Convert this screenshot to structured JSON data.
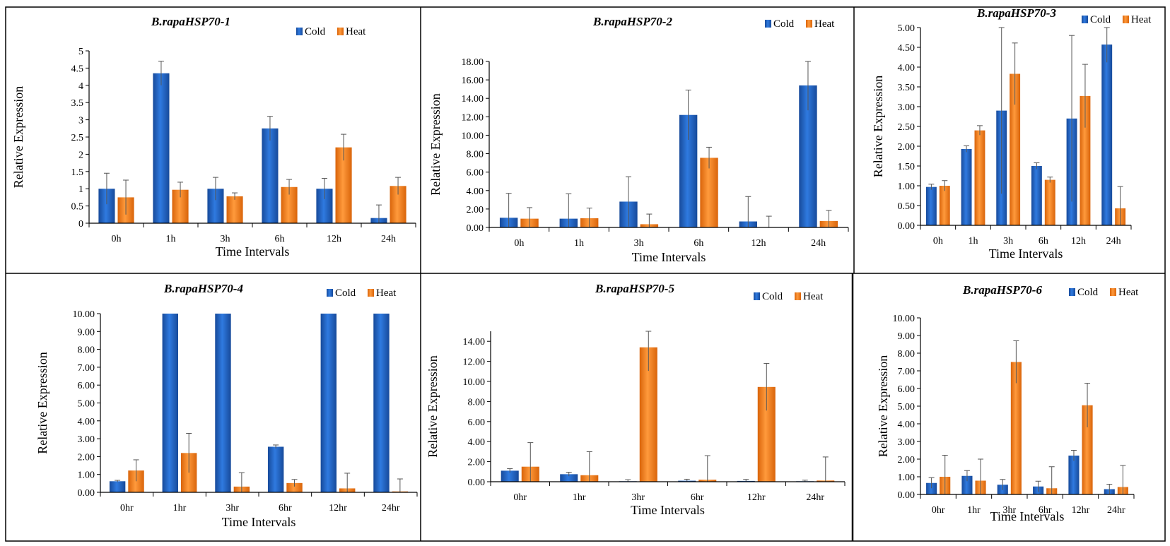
{
  "figure_colors": {
    "cold": "#1f5fbf",
    "heat": "#f07a14",
    "error_bar": "#555555",
    "axis": "#000000"
  },
  "chart_data": [
    {
      "type": "bar",
      "title": "B.rapaHSP70-1",
      "xlabel": "Time Intervals",
      "ylabel": "Relative Expression",
      "categories": [
        "0h",
        "1h",
        "3h",
        "6h",
        "12h",
        "24h"
      ],
      "ylim": [
        0,
        5
      ],
      "ytick_step": 0.5,
      "ytick_labels": [
        "0",
        "0.5",
        "1",
        "1.5",
        "2",
        "2.5",
        "3",
        "3.5",
        "4",
        "4.5",
        "5"
      ],
      "legend_position": "top-right",
      "series": [
        {
          "name": "Cold",
          "values": [
            1.0,
            4.35,
            1.0,
            2.75,
            1.0,
            0.15
          ],
          "errors": [
            0.45,
            0.35,
            0.33,
            0.35,
            0.3,
            0.38
          ]
        },
        {
          "name": "Heat",
          "values": [
            0.75,
            0.97,
            0.78,
            1.05,
            2.2,
            1.08
          ],
          "errors": [
            0.5,
            0.22,
            0.1,
            0.22,
            0.38,
            0.25
          ]
        }
      ]
    },
    {
      "type": "bar",
      "title": "B.rapaHSP70-2",
      "xlabel": "Time Intervals",
      "ylabel": "Relative Expression",
      "categories": [
        "0h",
        "1h",
        "3h",
        "6h",
        "12h",
        "24h"
      ],
      "ylim": [
        0,
        18
      ],
      "ytick_step": 2,
      "ytick_labels": [
        "0.00",
        "2.00",
        "4.00",
        "6.00",
        "8.00",
        "10.00",
        "12.00",
        "14.00",
        "16.00",
        "18.00"
      ],
      "legend_position": "top-right",
      "series": [
        {
          "name": "Cold",
          "values": [
            1.05,
            0.95,
            2.8,
            12.2,
            0.65,
            15.4
          ],
          "errors": [
            2.65,
            2.7,
            2.7,
            2.7,
            2.7,
            2.7
          ]
        },
        {
          "name": "Heat",
          "values": [
            0.95,
            1.0,
            0.35,
            7.55,
            0.02,
            0.7
          ],
          "errors": [
            1.2,
            1.1,
            1.1,
            1.15,
            1.2,
            1.15
          ]
        }
      ]
    },
    {
      "type": "bar",
      "title": "B.rapaHSP70-3",
      "xlabel": "Time Intervals",
      "ylabel": "Relative Expression",
      "categories": [
        "0h",
        "1h",
        "3h",
        "6h",
        "12h",
        "24h"
      ],
      "ylim": [
        0,
        5
      ],
      "ytick_step": 0.5,
      "ytick_labels": [
        "0.00",
        "0.50",
        "1.00",
        "1.50",
        "2.00",
        "2.50",
        "3.00",
        "3.50",
        "4.00",
        "4.50",
        "5.00"
      ],
      "legend_position": "top-right",
      "series": [
        {
          "name": "Cold",
          "values": [
            0.97,
            1.93,
            2.9,
            1.5,
            2.7,
            4.57
          ],
          "errors": [
            0.07,
            0.08,
            2.1,
            0.08,
            2.1,
            0.45
          ]
        },
        {
          "name": "Heat",
          "values": [
            1.0,
            2.4,
            3.83,
            1.15,
            3.27,
            0.43
          ],
          "errors": [
            0.13,
            0.12,
            0.78,
            0.07,
            0.8,
            0.55
          ]
        }
      ]
    },
    {
      "type": "bar",
      "title": "B.rapaHSP70-4",
      "xlabel": "Time Intervals",
      "ylabel": "Relative Expression",
      "categories": [
        "0hr",
        "1hr",
        "3hr",
        "6hr",
        "12hr",
        "24hr"
      ],
      "ylim": [
        0,
        10
      ],
      "ytick_step": 1,
      "ytick_labels": [
        "0.00",
        "1.00",
        "2.00",
        "3.00",
        "4.00",
        "5.00",
        "6.00",
        "7.00",
        "8.00",
        "9.00",
        "10.00"
      ],
      "legend_position": "top-right",
      "series": [
        {
          "name": "Cold",
          "values": [
            0.62,
            10.0,
            10.0,
            2.55,
            10.0,
            10.0
          ],
          "errors": [
            0.05,
            0,
            0,
            0.1,
            0,
            0
          ]
        },
        {
          "name": "Heat",
          "values": [
            1.22,
            2.2,
            0.32,
            0.52,
            0.22,
            0.05
          ],
          "errors": [
            0.6,
            1.1,
            0.78,
            0.2,
            0.85,
            0.7
          ]
        }
      ]
    },
    {
      "type": "bar",
      "title": "B.rapaHSP70-5",
      "xlabel": "Time Intervals",
      "ylabel": "Relative Expression",
      "categories": [
        "0hr",
        "1hr",
        "3hr",
        "6hr",
        "12hr",
        "24hr"
      ],
      "ylim": [
        0,
        15
      ],
      "ytick_step": 2,
      "ytick_labels": [
        "0.00",
        "2.00",
        "4.00",
        "6.00",
        "8.00",
        "10.00",
        "12.00",
        "14.00"
      ],
      "legend_position": "top-right",
      "series": [
        {
          "name": "Cold",
          "values": [
            1.1,
            0.75,
            0.05,
            0.1,
            0.08,
            0.05
          ],
          "errors": [
            0.2,
            0.2,
            0.15,
            0.15,
            0.15,
            0.1
          ]
        },
        {
          "name": "Heat",
          "values": [
            1.5,
            0.65,
            13.4,
            0.2,
            9.45,
            0.12
          ],
          "errors": [
            2.4,
            2.35,
            2.35,
            2.4,
            2.35,
            2.35
          ]
        }
      ]
    },
    {
      "type": "bar",
      "title": "B.rapaHSP70-6",
      "xlabel": "Time Intervals",
      "ylabel": "Relative Expression",
      "categories": [
        "0hr",
        "1hr",
        "3hr",
        "6hr",
        "12hr",
        "24hr"
      ],
      "ylim": [
        0,
        10
      ],
      "ytick_step": 1,
      "ytick_labels": [
        "0.00",
        "1.00",
        "2.00",
        "3.00",
        "4.00",
        "5.00",
        "6.00",
        "7.00",
        "8.00",
        "9.00",
        "10.00"
      ],
      "legend_position": "top-right",
      "series": [
        {
          "name": "Cold",
          "values": [
            0.65,
            1.05,
            0.55,
            0.45,
            2.2,
            0.3
          ],
          "errors": [
            0.3,
            0.3,
            0.3,
            0.3,
            0.3,
            0.28
          ]
        },
        {
          "name": "Heat",
          "values": [
            1.0,
            0.78,
            7.5,
            0.35,
            5.05,
            0.42
          ],
          "errors": [
            1.22,
            1.22,
            1.2,
            1.22,
            1.25,
            1.22
          ]
        }
      ]
    }
  ]
}
